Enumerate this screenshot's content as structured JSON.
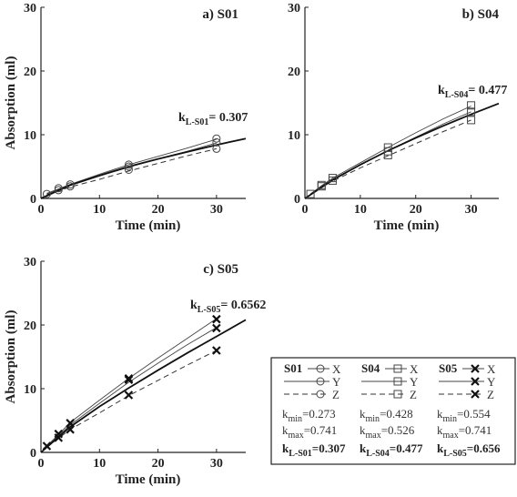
{
  "chart_data": [
    {
      "type": "scatter",
      "panel": "a) S01",
      "xlabel": "Time (min)",
      "ylabel": "Absorption (ml)",
      "xlim": [
        0,
        35
      ],
      "ylim": [
        0,
        30
      ],
      "xticks": [
        0,
        10,
        20,
        30
      ],
      "yticks": [
        0,
        10,
        20,
        30
      ],
      "marker": "circle",
      "annotation": {
        "k": "k",
        "sub": "L-S01",
        "value": "= 0.307"
      },
      "series": [
        {
          "name": "X",
          "style": "solid-thin",
          "x": [
            1,
            3,
            5,
            10,
            15,
            20,
            25,
            30
          ],
          "y": [
            0.8,
            1.5,
            2.2,
            3.8,
            5.3,
            6.6,
            7.9,
            9.3
          ]
        },
        {
          "name": "Y",
          "style": "solid-thin",
          "x": [
            1,
            3,
            5,
            10,
            15,
            20,
            25,
            30
          ],
          "y": [
            0.7,
            1.4,
            2.0,
            3.5,
            4.9,
            6.2,
            7.4,
            8.7
          ]
        },
        {
          "name": "Z",
          "style": "dashed",
          "x": [
            1,
            3,
            5,
            10,
            15,
            20,
            25,
            30
          ],
          "y": [
            0.6,
            1.2,
            1.8,
            3.0,
            4.3,
            5.5,
            6.7,
            7.8
          ]
        },
        {
          "name": "fit",
          "style": "solid-thick",
          "x": [
            0,
            5,
            10,
            15,
            20,
            25,
            30,
            35
          ],
          "y": [
            0,
            2.1,
            3.6,
            5.0,
            6.2,
            7.3,
            8.4,
            9.4
          ]
        }
      ],
      "points": {
        "x": [
          1,
          3,
          3,
          5,
          5,
          15,
          15,
          15,
          30,
          30,
          30
        ],
        "y": [
          0.7,
          1.3,
          1.6,
          1.9,
          2.2,
          4.5,
          5.0,
          5.3,
          7.8,
          8.8,
          9.4
        ]
      }
    },
    {
      "type": "scatter",
      "panel": "b) S04",
      "xlabel": "Time (min)",
      "ylabel": "",
      "xlim": [
        0,
        35
      ],
      "ylim": [
        0,
        30
      ],
      "xticks": [
        0,
        10,
        20,
        30
      ],
      "yticks": [
        0,
        10,
        20,
        30
      ],
      "marker": "square",
      "annotation": {
        "k": "k",
        "sub": "L-S04",
        "value": "= 0.477"
      },
      "series": [
        {
          "name": "X",
          "style": "solid-thin",
          "x": [
            1,
            3,
            5,
            10,
            15,
            20,
            25,
            30
          ],
          "y": [
            0.7,
            2.0,
            3.2,
            5.6,
            8.0,
            10.3,
            12.5,
            14.5
          ]
        },
        {
          "name": "Y",
          "style": "solid-thin",
          "x": [
            1,
            3,
            5,
            10,
            15,
            20,
            25,
            30
          ],
          "y": [
            0.7,
            1.9,
            3.0,
            5.3,
            7.5,
            9.6,
            11.7,
            13.6
          ]
        },
        {
          "name": "Z",
          "style": "dashed",
          "x": [
            1,
            3,
            5,
            10,
            15,
            20,
            25,
            30
          ],
          "y": [
            0.6,
            1.8,
            2.7,
            4.8,
            6.7,
            8.6,
            10.5,
            12.3
          ]
        },
        {
          "name": "fit",
          "style": "solid-thick",
          "x": [
            0,
            5,
            10,
            15,
            20,
            25,
            30,
            35
          ],
          "y": [
            0,
            2.9,
            5.3,
            7.5,
            9.5,
            11.4,
            13.2,
            14.9
          ]
        }
      ],
      "points": {
        "x": [
          1,
          3,
          3,
          5,
          5,
          15,
          15,
          15,
          30,
          30,
          30
        ],
        "y": [
          0.7,
          1.9,
          2.1,
          2.8,
          3.2,
          6.8,
          7.4,
          8.0,
          12.3,
          13.6,
          14.6
        ]
      }
    },
    {
      "type": "scatter",
      "panel": "c) S05",
      "xlabel": "Time (min)",
      "ylabel": "Absorption (ml)",
      "xlim": [
        0,
        35
      ],
      "ylim": [
        0,
        30
      ],
      "xticks": [
        0,
        10,
        20,
        30
      ],
      "yticks": [
        0,
        10,
        20,
        30
      ],
      "marker": "cross",
      "annotation": {
        "k": "k",
        "sub": "L-S05",
        "value": "= 0.6562"
      },
      "series": [
        {
          "name": "X",
          "style": "solid-thin",
          "x": [
            1,
            3,
            5,
            10,
            15,
            20,
            25,
            30
          ],
          "y": [
            1.0,
            2.8,
            4.7,
            8.2,
            11.6,
            14.8,
            17.9,
            21.0
          ]
        },
        {
          "name": "Y",
          "style": "solid-thin",
          "x": [
            1,
            3,
            5,
            10,
            15,
            20,
            25,
            30
          ],
          "y": [
            0.9,
            2.6,
            4.3,
            7.7,
            11.0,
            14.0,
            16.9,
            19.6
          ]
        },
        {
          "name": "Z",
          "style": "dashed",
          "x": [
            1,
            3,
            5,
            10,
            15,
            20,
            25,
            30
          ],
          "y": [
            0.8,
            2.2,
            3.6,
            6.2,
            8.9,
            11.3,
            13.7,
            16.0
          ]
        },
        {
          "name": "fit",
          "style": "solid-thick",
          "x": [
            0,
            5,
            10,
            15,
            20,
            25,
            30,
            35
          ],
          "y": [
            0,
            4.0,
            7.2,
            10.1,
            12.9,
            15.6,
            18.2,
            20.8
          ]
        }
      ],
      "points": {
        "x": [
          1,
          3,
          3,
          5,
          5,
          15,
          15,
          15,
          30,
          30,
          30
        ],
        "y": [
          1.0,
          2.3,
          2.9,
          3.6,
          4.6,
          9.0,
          11.4,
          11.6,
          16.0,
          19.5,
          20.9
        ]
      }
    }
  ],
  "legend": {
    "columns": [
      {
        "header": "S01",
        "marker": "circle",
        "rows": [
          {
            "label": "X",
            "style": "solid-thin"
          },
          {
            "label": "Y",
            "style": "solid-thin"
          },
          {
            "label": "Z",
            "style": "dashed"
          }
        ],
        "kmin": {
          "k": "k",
          "sub": "min",
          "value": "=0.273"
        },
        "kmax": {
          "k": "k",
          "sub": "max",
          "value": "=0.741"
        },
        "kl": {
          "k": "k",
          "sub": "L-S01",
          "value": "=0.307"
        }
      },
      {
        "header": "S04",
        "marker": "square",
        "rows": [
          {
            "label": "X",
            "style": "solid-thin"
          },
          {
            "label": "Y",
            "style": "solid-thin"
          },
          {
            "label": "Z",
            "style": "dashed"
          }
        ],
        "kmin": {
          "k": "k",
          "sub": "min",
          "value": "=0.428"
        },
        "kmax": {
          "k": "k",
          "sub": "max",
          "value": "=0.526"
        },
        "kl": {
          "k": "k",
          "sub": "L-S04",
          "value": "=0.477"
        }
      },
      {
        "header": "S05",
        "marker": "cross",
        "rows": [
          {
            "label": "X",
            "style": "solid-thin"
          },
          {
            "label": "Y",
            "style": "solid-thin"
          },
          {
            "label": "Z",
            "style": "dashed"
          }
        ],
        "kmin": {
          "k": "k",
          "sub": "min",
          "value": "=0.554"
        },
        "kmax": {
          "k": "k",
          "sub": "max",
          "value": "=0.741"
        },
        "kl": {
          "k": "k",
          "sub": "L-S05",
          "value": "=0.656"
        }
      }
    ]
  }
}
